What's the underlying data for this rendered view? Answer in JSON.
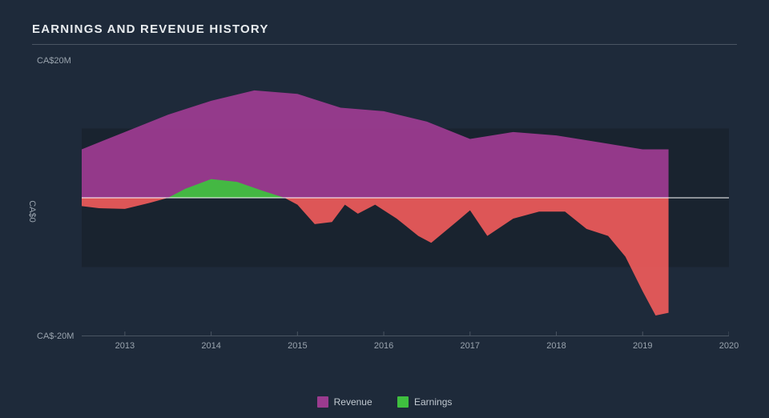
{
  "chart": {
    "type": "area",
    "title": "EARNINGS AND REVENUE HISTORY",
    "background_color": "#1e2a3a",
    "text_color": "#9aa4ae",
    "title_color": "#e8ecef",
    "title_fontsize": 15,
    "label_fontsize": 11,
    "zero_line_color": "#ffffff",
    "axis_line_color": "#4a5562",
    "shade_band_color": "#19232f",
    "ylim": [
      -20,
      20
    ],
    "yticks": [
      {
        "v": 20,
        "label": "CA$20M"
      },
      {
        "v": 0,
        "label": "CA$0"
      },
      {
        "v": -20,
        "label": "CA$-20M"
      }
    ],
    "xlim": [
      2012.5,
      2020
    ],
    "xticks": [
      2013,
      2014,
      2015,
      2016,
      2017,
      2018,
      2019,
      2020
    ],
    "series": [
      {
        "name": "Revenue",
        "color": "#9b3b8f",
        "fill_to": 0,
        "points": [
          {
            "x": 2012.5,
            "y": 7.0
          },
          {
            "x": 2013.0,
            "y": 9.5
          },
          {
            "x": 2013.5,
            "y": 12.0
          },
          {
            "x": 2014.0,
            "y": 14.0
          },
          {
            "x": 2014.5,
            "y": 15.5
          },
          {
            "x": 2015.0,
            "y": 15.0
          },
          {
            "x": 2015.5,
            "y": 13.0
          },
          {
            "x": 2016.0,
            "y": 12.5
          },
          {
            "x": 2016.5,
            "y": 11.0
          },
          {
            "x": 2017.0,
            "y": 8.5
          },
          {
            "x": 2017.5,
            "y": 9.5
          },
          {
            "x": 2018.0,
            "y": 9.0
          },
          {
            "x": 2018.5,
            "y": 8.0
          },
          {
            "x": 2019.0,
            "y": 7.0
          },
          {
            "x": 2019.3,
            "y": 7.0
          }
        ]
      },
      {
        "name": "Earnings",
        "color": "#3fbf3f",
        "color_neg": "#e85a5a",
        "fill_to": 0,
        "points": [
          {
            "x": 2012.5,
            "y": -1.2
          },
          {
            "x": 2012.7,
            "y": -1.5
          },
          {
            "x": 2013.0,
            "y": -1.6
          },
          {
            "x": 2013.3,
            "y": -0.7
          },
          {
            "x": 2013.5,
            "y": 0.0
          },
          {
            "x": 2013.7,
            "y": 1.3
          },
          {
            "x": 2014.0,
            "y": 2.7
          },
          {
            "x": 2014.3,
            "y": 2.3
          },
          {
            "x": 2014.6,
            "y": 1.0
          },
          {
            "x": 2014.85,
            "y": 0.0
          },
          {
            "x": 2015.0,
            "y": -1.0
          },
          {
            "x": 2015.2,
            "y": -3.8
          },
          {
            "x": 2015.4,
            "y": -3.5
          },
          {
            "x": 2015.55,
            "y": -1.0
          },
          {
            "x": 2015.7,
            "y": -2.3
          },
          {
            "x": 2015.9,
            "y": -1.0
          },
          {
            "x": 2016.15,
            "y": -3.0
          },
          {
            "x": 2016.4,
            "y": -5.5
          },
          {
            "x": 2016.55,
            "y": -6.5
          },
          {
            "x": 2016.85,
            "y": -3.4
          },
          {
            "x": 2017.0,
            "y": -1.8
          },
          {
            "x": 2017.2,
            "y": -5.5
          },
          {
            "x": 2017.5,
            "y": -3.0
          },
          {
            "x": 2017.8,
            "y": -2.0
          },
          {
            "x": 2018.1,
            "y": -2.0
          },
          {
            "x": 2018.35,
            "y": -4.5
          },
          {
            "x": 2018.6,
            "y": -5.5
          },
          {
            "x": 2018.8,
            "y": -8.5
          },
          {
            "x": 2019.0,
            "y": -13.5
          },
          {
            "x": 2019.15,
            "y": -17.0
          },
          {
            "x": 2019.3,
            "y": -16.6
          }
        ]
      }
    ],
    "legend": [
      {
        "label": "Revenue",
        "color": "#9b3b8f"
      },
      {
        "label": "Earnings",
        "color": "#3fbf3f"
      }
    ]
  }
}
